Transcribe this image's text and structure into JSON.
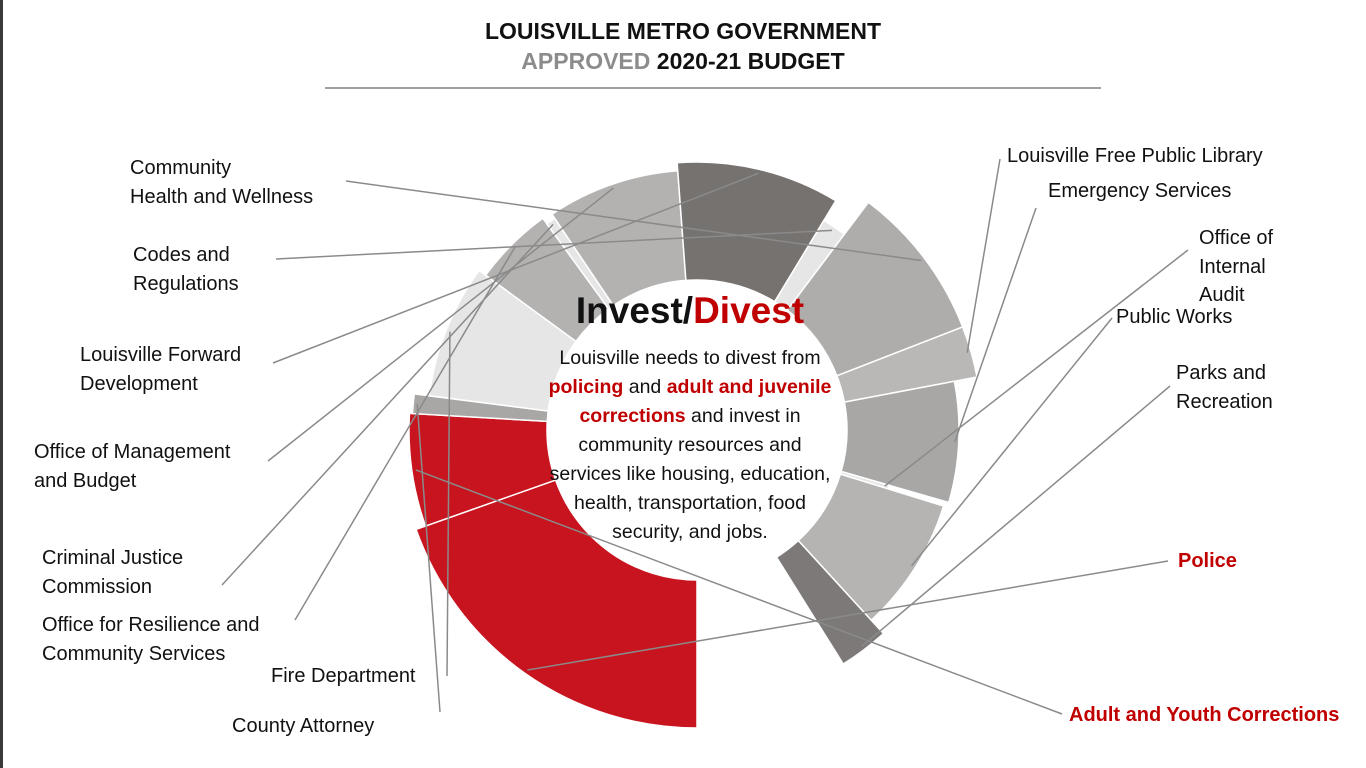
{
  "header": {
    "title_line1": "LOUISVILLE METRO GOVERNMENT",
    "title_line2_muted": "APPROVED",
    "title_line2_dark": "2020-21 BUDGET"
  },
  "center": {
    "title_dark": "Invest/",
    "title_red": "Divest",
    "body_1": "Louisville needs to divest from ",
    "body_red1": "policing",
    "body_2": " and ",
    "body_red2": "adult and juvenile corrections",
    "body_3": " and invest in community resources and services like housing, education, health, transportation, food security, and jobs."
  },
  "colors": {
    "accent_red": "#c8141e",
    "dark_gray": "#767270",
    "mid_gray": "#a9a7a6",
    "light_gray": "#e6e6e6",
    "pale_gray": "#d9d9d9"
  },
  "chart_data": {
    "type": "pie",
    "variant": "partial-donut",
    "title": "LOUISVILLE METRO GOVERNMENT APPROVED 2020-21 BUDGET",
    "slices": [
      {
        "label": "Police",
        "value": 19.5,
        "color": "#c8141e",
        "highlight": true
      },
      {
        "label": "Adult and Youth Corrections",
        "value": 6.3,
        "color": "#c8141e",
        "highlight": true
      },
      {
        "label": "County Attorney",
        "value": 1.1,
        "color": "#a9a7a6"
      },
      {
        "label": "Fire Department",
        "value": 8.0,
        "color": "#e6e6e6"
      },
      {
        "label": "Office for Resilience and Community Services",
        "value": 4.9,
        "color": "#b4b2b1"
      },
      {
        "label": "Criminal Justice Commission",
        "value": 0.6,
        "color": "#e6e6e6"
      },
      {
        "label": "Office of Management and Budget",
        "value": 8.2,
        "color": "#b4b2b1"
      },
      {
        "label": "Louisville Forward Development",
        "value": 9.8,
        "color": "#767270"
      },
      {
        "label": "Codes and Regulations",
        "value": 1.6,
        "color": "#e6e6e6"
      },
      {
        "label": "Community Health and Wellness",
        "value": 8.8,
        "color": "#afadac"
      },
      {
        "label": "Louisville Free Public Library",
        "value": 2.9,
        "color": "#bab8b7"
      },
      {
        "label": "Emergency Services",
        "value": 7.4,
        "color": "#a9a7a6"
      },
      {
        "label": "Office of Internal Audit",
        "value": 0.3,
        "color": "#e6e6e6"
      },
      {
        "label": "Public Works",
        "value": 8.4,
        "color": "#b6b4b3"
      },
      {
        "label": "Parks and Recreation",
        "value": 2.9,
        "color": "#7c7978"
      }
    ]
  },
  "labels": {
    "community_health": [
      "Community",
      "Health and Wellness"
    ],
    "codes": [
      "Codes and",
      "Regulations"
    ],
    "forward": [
      "Louisville Forward",
      "Development"
    ],
    "omb": [
      "Office of Management",
      "and Budget"
    ],
    "cjc": [
      "Criminal Justice",
      "Commission"
    ],
    "resilience": [
      "Office for Resilience and",
      "Community Services"
    ],
    "fire": [
      "Fire Department"
    ],
    "county": [
      "County Attorney"
    ],
    "library": [
      "Louisville Free Public Library"
    ],
    "emergency": [
      "Emergency Services"
    ],
    "audit": [
      "Office of",
      "Internal",
      "Audit"
    ],
    "public_works": [
      "Public Works"
    ],
    "parks": [
      "Parks and",
      "Recreation"
    ],
    "police": [
      "Police"
    ],
    "corrections": [
      "Adult and Youth Corrections"
    ]
  }
}
